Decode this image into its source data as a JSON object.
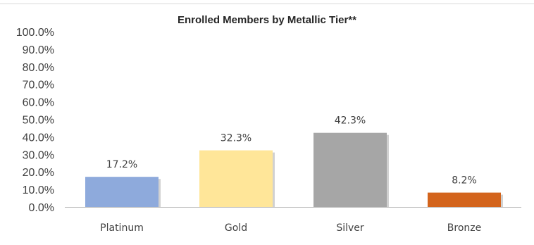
{
  "chart_data": {
    "type": "bar",
    "title": "Enrolled Members by Metallic Tier**",
    "categories": [
      "Platinum",
      "Gold",
      "Silver",
      "Bronze"
    ],
    "values": [
      17.2,
      32.3,
      42.3,
      8.2
    ],
    "data_labels": [
      "17.2%",
      "32.3%",
      "42.3%",
      "8.2%"
    ],
    "colors": [
      "#8eaadc",
      "#ffe699",
      "#a6a6a6",
      "#d3641c"
    ],
    "ylim": [
      0,
      100
    ],
    "yticks": [
      "0.0%",
      "10.0%",
      "20.0%",
      "30.0%",
      "40.0%",
      "50.0%",
      "60.0%",
      "70.0%",
      "80.0%",
      "90.0%",
      "100.0%"
    ],
    "grid": false,
    "legend": "none"
  }
}
